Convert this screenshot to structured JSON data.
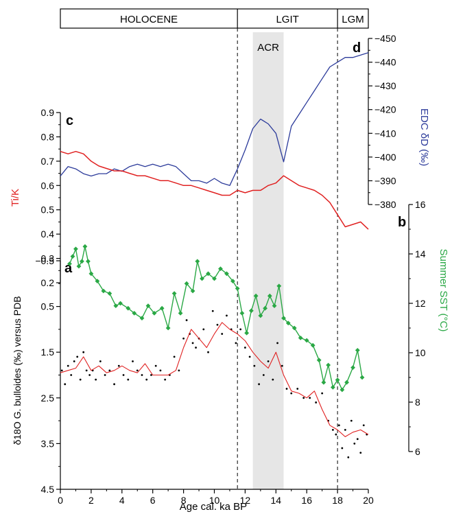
{
  "period_bar": {
    "labels": [
      "HOLOCENE",
      "LGIT",
      "LGM"
    ],
    "boundaries_ka": [
      11.5,
      18
    ]
  },
  "panel_letters": {
    "a": "a",
    "b": "b",
    "c": "c",
    "d": "d"
  },
  "acr": {
    "label": "ACR",
    "from_ka": 12.5,
    "to_ka": 14.5
  },
  "colors": {
    "edc": "#2b3a9a",
    "tik": "#e02020",
    "sst": "#2aa845",
    "d18o_fit": "#e02020",
    "d18o_points": "#000000",
    "acr_band": "#e6e6e6"
  },
  "chart_data": [
    {
      "panel": "d",
      "type": "line",
      "ylabel": "EDC δD (‰)",
      "ylim": [
        -450,
        -380
      ],
      "yticks": [
        -380,
        -390,
        -400,
        -410,
        -420,
        -430,
        -440,
        -450
      ],
      "inverted_y": true,
      "y_axis_side": "right",
      "series": [
        {
          "x": [
            0,
            0.5,
            1,
            1.5,
            2,
            2.5,
            3,
            3.5,
            4,
            4.5,
            5,
            5.5,
            6,
            6.5,
            7,
            7.5,
            8,
            8.5,
            9,
            9.5,
            10,
            10.5,
            11,
            11.5,
            12,
            12.5,
            13,
            13.5,
            14,
            14.5,
            15,
            15.5,
            16,
            16.5,
            17,
            17.5,
            18,
            18.5,
            19,
            19.5,
            20
          ],
          "values": [
            -392,
            -396,
            -395,
            -393,
            -392,
            -393,
            -393,
            -395,
            -394,
            -396,
            -397,
            -396,
            -397,
            -396,
            -397,
            -396,
            -393,
            -390,
            -390,
            -389,
            -391,
            -389,
            -388,
            -395,
            -403,
            -412,
            -416,
            -414,
            -410,
            -398,
            -413,
            -418,
            -423,
            -428,
            -433,
            -438,
            -440,
            -442,
            -442,
            -443,
            -444
          ]
        }
      ]
    },
    {
      "panel": "c",
      "type": "line",
      "ylabel": "Ti/K",
      "ylim": [
        0.2,
        0.9
      ],
      "yticks": [
        0.2,
        0.3,
        0.4,
        0.5,
        0.6,
        0.7,
        0.8,
        0.9
      ],
      "y_axis_side": "left",
      "series": [
        {
          "x": [
            0,
            0.5,
            1,
            1.5,
            2,
            2.5,
            3,
            3.5,
            4,
            4.5,
            5,
            5.5,
            6,
            6.5,
            7,
            7.5,
            8,
            8.5,
            9,
            9.5,
            10,
            10.5,
            11,
            11.5,
            12,
            12.5,
            13,
            13.5,
            14,
            14.5,
            15,
            15.5,
            16,
            16.5,
            17,
            17.5,
            18,
            18.5,
            19,
            19.5,
            20
          ],
          "values": [
            0.74,
            0.73,
            0.74,
            0.73,
            0.7,
            0.68,
            0.67,
            0.66,
            0.66,
            0.65,
            0.64,
            0.64,
            0.63,
            0.62,
            0.62,
            0.61,
            0.6,
            0.6,
            0.59,
            0.58,
            0.57,
            0.56,
            0.56,
            0.58,
            0.57,
            0.58,
            0.58,
            0.6,
            0.61,
            0.64,
            0.62,
            0.6,
            0.59,
            0.58,
            0.56,
            0.53,
            0.48,
            0.43,
            0.44,
            0.45,
            0.42
          ]
        }
      ]
    },
    {
      "panel": "b",
      "type": "line",
      "ylabel": "Summer SST (°C)",
      "ylim": [
        6,
        16
      ],
      "yticks": [
        6,
        8,
        10,
        12,
        14,
        16
      ],
      "y_axis_side": "right",
      "series": [
        {
          "x": [
            0.6,
            0.8,
            1.0,
            1.2,
            1.4,
            1.6,
            1.8,
            2.0,
            2.4,
            2.8,
            3.2,
            3.6,
            3.9,
            4.4,
            4.8,
            5.3,
            5.7,
            6.1,
            6.6,
            7.0,
            7.4,
            7.8,
            8.2,
            8.6,
            8.9,
            9.2,
            9.6,
            10.0,
            10.4,
            10.8,
            11.2,
            11.5,
            11.8,
            12.1,
            12.4,
            12.7,
            13.0,
            13.3,
            13.6,
            13.9,
            14.2,
            14.5,
            14.8,
            15.2,
            15.6,
            16.0,
            16.4,
            16.8,
            17.1,
            17.4,
            17.7,
            18.0,
            18.3,
            18.6,
            19.0,
            19.3,
            19.6
          ],
          "values": [
            13.6,
            13.9,
            14.2,
            13.5,
            13.7,
            14.3,
            13.7,
            13.2,
            12.9,
            12.5,
            12.4,
            11.9,
            12.0,
            11.8,
            11.6,
            11.4,
            11.9,
            11.6,
            11.8,
            11.0,
            12.4,
            11.6,
            12.8,
            12.5,
            13.7,
            13.0,
            13.2,
            13.0,
            13.4,
            13.2,
            12.9,
            12.6,
            11.6,
            10.8,
            11.7,
            12.3,
            11.5,
            11.8,
            12.3,
            11.9,
            12.7,
            11.4,
            11.2,
            11.0,
            10.6,
            10.5,
            10.3,
            9.7,
            8.8,
            9.5,
            8.6,
            8.9,
            8.5,
            8.8,
            9.4,
            10.1,
            9.0
          ]
        }
      ]
    },
    {
      "panel": "a",
      "type": "scatter",
      "ylabel": "δ18O G. bulloides (‰) versus PDB",
      "ylim": [
        -0.5,
        4.5
      ],
      "yticks": [
        -0.5,
        0.5,
        1.5,
        2.5,
        3.5,
        4.5
      ],
      "inverted_y": true,
      "y_axis_side": "left",
      "series": [
        {
          "kind": "points",
          "x": [
            0.1,
            0.3,
            0.5,
            0.7,
            0.9,
            1.1,
            1.3,
            1.5,
            1.7,
            1.9,
            2.1,
            2.3,
            2.6,
            2.9,
            3.2,
            3.5,
            3.8,
            4.1,
            4.4,
            4.7,
            5.0,
            5.3,
            5.6,
            5.9,
            6.2,
            6.5,
            6.8,
            7.1,
            7.4,
            7.7,
            8.0,
            8.2,
            8.4,
            8.6,
            8.8,
            9.0,
            9.3,
            9.6,
            9.9,
            10.2,
            10.5,
            10.8,
            11.1,
            11.4,
            11.7,
            12.0,
            12.3,
            12.6,
            12.9,
            13.2,
            13.5,
            13.8,
            14.1,
            14.4,
            14.7,
            15.0,
            15.4,
            15.8,
            16.2,
            16.6,
            17.0,
            17.4,
            17.7,
            17.9,
            18.1,
            18.3,
            18.5,
            18.7,
            18.9,
            19.1,
            19.3,
            19.5,
            19.7,
            19.9
          ],
          "values": [
            1.9,
            2.2,
            1.8,
            2.0,
            1.7,
            1.6,
            2.1,
            1.5,
            1.9,
            2.0,
            1.9,
            2.1,
            1.7,
            2.0,
            1.9,
            2.2,
            1.8,
            2.0,
            2.1,
            1.7,
            1.9,
            2.0,
            2.1,
            2.0,
            1.8,
            1.9,
            2.1,
            2.0,
            1.6,
            1.9,
            1.2,
            0.8,
            1.1,
            1.3,
            1.4,
            1.2,
            1.0,
            1.5,
            0.6,
            0.9,
            1.1,
            0.7,
            1.0,
            1.3,
            1.0,
            1.4,
            1.6,
            1.8,
            2.2,
            2.0,
            1.7,
            2.1,
            1.3,
            1.8,
            2.3,
            2.4,
            2.3,
            2.5,
            2.5,
            2.6,
            2.4,
            3.0,
            3.2,
            3.3,
            3.1,
            3.6,
            3.2,
            3.8,
            3.0,
            3.5,
            3.4,
            3.7,
            3.1,
            3.3
          ]
        },
        {
          "kind": "smoothed-line",
          "x": [
            0,
            0.5,
            1,
            1.5,
            2,
            2.5,
            3,
            3.5,
            4,
            4.5,
            5,
            5.5,
            6,
            6.5,
            7,
            7.5,
            8,
            8.5,
            9,
            9.5,
            10,
            10.5,
            11,
            11.5,
            12,
            12.5,
            13,
            13.5,
            14,
            14.5,
            15,
            15.5,
            16,
            16.5,
            17,
            17.5,
            18,
            18.5,
            19,
            19.5,
            20
          ],
          "values": [
            1.95,
            1.9,
            1.85,
            1.6,
            1.9,
            1.8,
            1.95,
            1.9,
            1.8,
            1.9,
            1.95,
            1.75,
            2.0,
            2.0,
            2.0,
            1.9,
            1.4,
            1.0,
            1.2,
            1.4,
            1.1,
            0.85,
            1.0,
            1.1,
            1.25,
            1.5,
            1.7,
            1.85,
            1.5,
            2.0,
            2.35,
            2.4,
            2.5,
            2.35,
            2.75,
            3.1,
            3.2,
            3.35,
            3.25,
            3.2,
            3.3
          ]
        }
      ]
    }
  ],
  "x_axis": {
    "label": "Age cal. ka BP",
    "ticks": [
      0,
      2,
      4,
      6,
      8,
      10,
      12,
      14,
      16,
      18,
      20
    ],
    "xlim": [
      0,
      20
    ]
  }
}
